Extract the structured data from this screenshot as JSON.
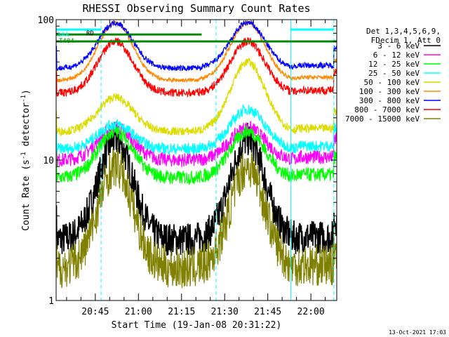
{
  "chart_data": {
    "type": "line",
    "title": "RHESSI Observing Summary Count Rates",
    "xlabel": "Start Time (19-Jan-08 20:31:22)",
    "ylabel_parts": [
      "Count Rate (s",
      "-1",
      " detector",
      "-1",
      ")"
    ],
    "yscale": "log",
    "ylim": [
      1,
      100
    ],
    "xlim": [
      "20:31:22",
      "22:09:00"
    ],
    "xticks": [
      "20:45",
      "21:00",
      "21:15",
      "21:30",
      "21:45",
      "22:00"
    ],
    "yticks": [
      "1",
      "10",
      "100"
    ],
    "legend_header": [
      "Det 1,3,4,5,6,9,",
      "FDecim 1, Att 0"
    ],
    "series": [
      {
        "name": "3 - 6 keV",
        "color": "#000000",
        "base": 2.7,
        "peak1": 14,
        "peak2": 14,
        "noise": 0.12
      },
      {
        "name": "6 - 12 keV",
        "color": "#ff00ff",
        "base": 10,
        "peak1": 17,
        "peak2": 17,
        "noise": 0.05
      },
      {
        "name": "12 - 25 keV",
        "color": "#00ff00",
        "base": 7.5,
        "peak1": 16,
        "peak2": 16,
        "noise": 0.05
      },
      {
        "name": "25 - 50 keV",
        "color": "#00ffff",
        "base": 12,
        "peak1": 18,
        "peak2": 23,
        "noise": 0.04
      },
      {
        "name": "50 - 100 keV",
        "color": "#dcdc00",
        "base": 16,
        "peak1": 28,
        "peak2": 50,
        "noise": 0.03
      },
      {
        "name": "100 - 300 keV",
        "color": "#ff8800",
        "base": 37,
        "peak1": 95,
        "peak2": 95,
        "noise": 0.015
      },
      {
        "name": "300 - 800 keV",
        "color": "#0000ff",
        "base": 45,
        "peak1": 95,
        "peak2": 95,
        "noise": 0.02
      },
      {
        "name": "800 - 7000 keV",
        "color": "#ff0000",
        "base": 30,
        "peak1": 70,
        "peak2": 70,
        "noise": 0.03
      },
      {
        "name": "7000 - 15000 keV",
        "color": "#808000",
        "base": 1.7,
        "peak1": 9,
        "peak2": 9,
        "noise": 0.15
      }
    ],
    "annotations": [
      {
        "text": "SAA",
        "color": "#00ffff"
      },
      {
        "text": "RD",
        "color": "#000000"
      },
      {
        "text": "T404",
        "color": "#008800"
      }
    ],
    "saa_boundaries": [
      "20:31:22",
      "20:47:00",
      "21:27:00",
      "21:53:00",
      "22:08:00"
    ],
    "night_boundaries": [
      "21:22:00",
      "21:55:00"
    ],
    "night_level": 70,
    "saa_level": 85
  },
  "footer_date": "13-Oct-2021 17:03"
}
